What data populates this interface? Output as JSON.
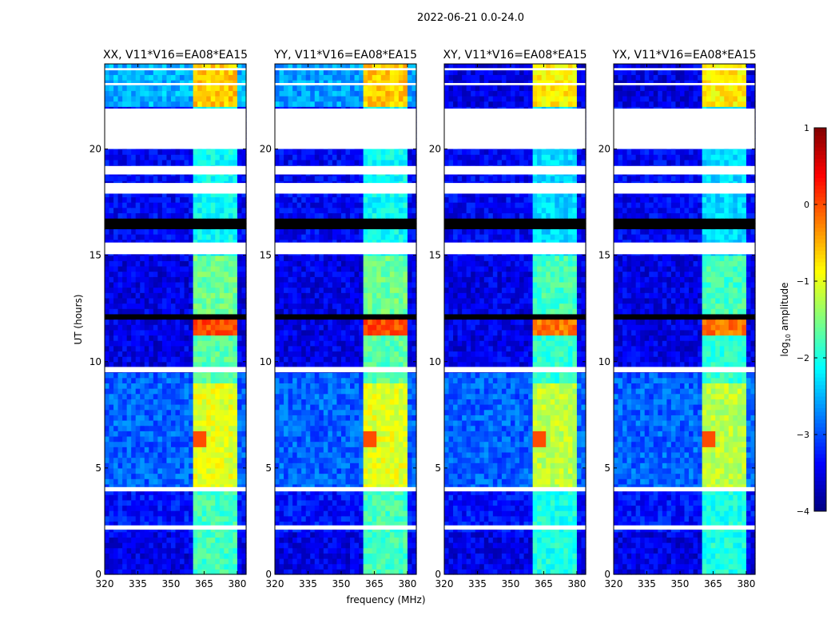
{
  "chart_data": {
    "type": "heatmap",
    "title": "2022-06-21 0.0-24.0",
    "xlabel": "frequency (MHz)",
    "ylabel": "UT (hours)",
    "xlim": [
      320,
      384
    ],
    "ylim": [
      0,
      24
    ],
    "xticks": [
      "320",
      "335",
      "350",
      "365",
      "380"
    ],
    "yticks": [
      "0",
      "5",
      "10",
      "15",
      "20"
    ],
    "colorbar": {
      "label": "log10 amplitude",
      "label_base": "log",
      "label_sub": "10",
      "label_rest": " amplitude",
      "range": [
        -4,
        1
      ],
      "ticks": [
        "1",
        "0",
        "−1",
        "−2",
        "−3",
        "−4"
      ],
      "colormap": "jet"
    },
    "panels": [
      {
        "title": "XX, V11*V16=EA08*EA15",
        "top_level": -2.5
      },
      {
        "title": "YY, V11*V16=EA08*EA15",
        "top_level": -2.6
      },
      {
        "title": "XY, V11*V16=EA08*EA15",
        "top_level": -3.5
      },
      {
        "title": "YX, V11*V16=EA08*EA15",
        "top_level": -3.5
      }
    ],
    "background_levels": [
      {
        "t": [
          0,
          2.1
        ],
        "level": -3.5
      },
      {
        "t": [
          2.1,
          4.0
        ],
        "level": -3.3
      },
      {
        "t": [
          4.0,
          9.4
        ],
        "level": -2.9
      },
      {
        "t": [
          9.4,
          15.0
        ],
        "level": -3.5
      },
      {
        "t": [
          15.0,
          22.0
        ],
        "level": -3.4
      },
      {
        "t": [
          22.0,
          24.0
        ],
        "level": -3.0
      }
    ],
    "rfi_channels_mhz": [
      [
        361,
        365.5
      ],
      [
        366,
        370
      ],
      [
        370.5,
        375.5
      ],
      [
        376,
        380.5
      ]
    ],
    "rfi_levels": [
      {
        "t": [
          0,
          4.0
        ],
        "level": -1.8
      },
      {
        "t": [
          4.0,
          9.0
        ],
        "level": -1.0
      },
      {
        "t": [
          9.0,
          11.3
        ],
        "level": -1.7
      },
      {
        "t": [
          11.3,
          11.9
        ],
        "level": 0.0
      },
      {
        "t": [
          11.9,
          15.0
        ],
        "level": -1.6
      },
      {
        "t": [
          15.0,
          22.0
        ],
        "level": -2.1
      },
      {
        "t": [
          22.0,
          24.0
        ],
        "level": -0.6
      }
    ],
    "hotspots": [
      {
        "t": 6.3,
        "f": 363,
        "level": 0.0
      }
    ],
    "flagged_hours": [
      [
        2.1,
        2.3
      ],
      [
        3.9,
        4.1
      ],
      [
        9.5,
        9.75
      ],
      [
        15.05,
        15.6
      ],
      [
        17.9,
        18.4
      ],
      [
        18.8,
        19.2
      ],
      [
        20.0,
        21.9
      ],
      [
        23.0,
        23.1
      ],
      [
        23.7,
        23.8
      ]
    ],
    "zero_hours": [
      [
        16.25,
        16.7
      ],
      [
        10.2,
        10.3
      ],
      [
        10.9,
        11.0
      ],
      [
        12.1,
        12.2
      ],
      [
        1.0,
        1.1
      ],
      [
        1.4,
        1.45
      ]
    ]
  }
}
